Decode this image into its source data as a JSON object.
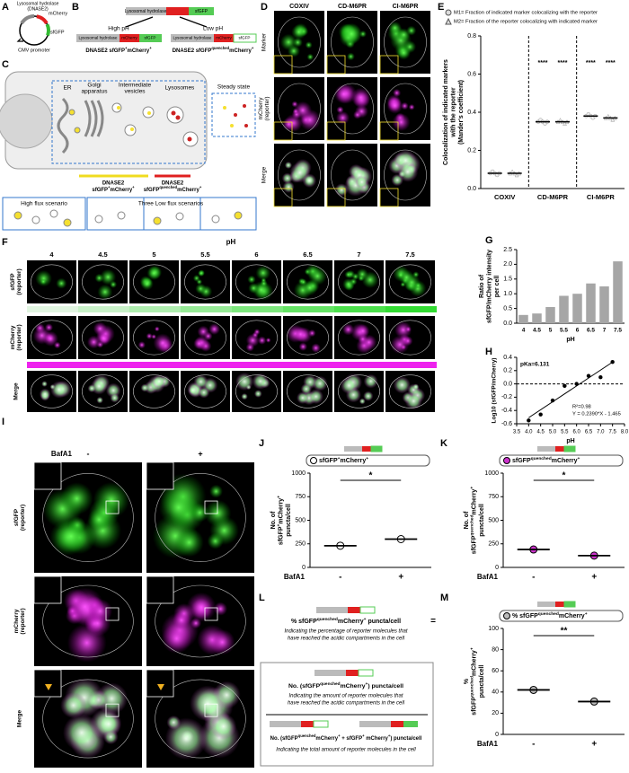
{
  "panel_labels": [
    "A",
    "B",
    "C",
    "D",
    "E",
    "F",
    "G",
    "H",
    "I",
    "J",
    "K",
    "L",
    "M"
  ],
  "a": {
    "hydrolase": "Lysosomal hydrolase",
    "hydrolase_gene": "(DNASE2)",
    "mcherry": "mCherry",
    "sfgfp": "sfGFP",
    "promoter": "CMV promoter"
  },
  "b": {
    "hydrolase": "Lysosomal hydrolase",
    "mcherry": "mCherry",
    "sfgfp": "sfGFP",
    "high_ph": "High pH",
    "low_ph": "Low pH",
    "high_label": [
      "DNASE2 sfGFP",
      "+",
      "mCherry",
      "+"
    ],
    "low_label": [
      "DNASE2 sfGFP",
      "quenched",
      "mCherry",
      "+"
    ]
  },
  "c": {
    "er": "ER",
    "golgi": [
      "Golgi",
      "apparatus"
    ],
    "vesicles": [
      "Intermediate",
      "vesicles"
    ],
    "lysosomes": "Lysosomes",
    "steady": "Steady state",
    "gene": "DNASE2",
    "yellow_label": [
      "sfGFP",
      "+",
      "mCherry",
      "+"
    ],
    "red_label": [
      "sfGFP",
      "quenched",
      "mCherry",
      "+"
    ],
    "high_flux": "High flux scenario",
    "low_flux": "Three Low flux scenarios"
  },
  "d": {
    "columns": [
      "COXIV",
      "CD-M6PR",
      "CI-M6PR"
    ],
    "rows": [
      [
        "Marker"
      ],
      [
        "mCherry",
        "(reporter)"
      ],
      [
        "Merge"
      ]
    ]
  },
  "f": {
    "title": "pH",
    "ph": [
      "4",
      "4.5",
      "5",
      "5.5",
      "6",
      "6.5",
      "7",
      "7.5"
    ],
    "rows": [
      [
        "sfGFP",
        "(reporter)"
      ],
      [
        "mCherry",
        "(reporter)"
      ],
      [
        "Merge"
      ]
    ]
  },
  "i": {
    "treatment": "BafA1",
    "conditions": [
      "-",
      "+"
    ],
    "rows": [
      [
        "sfGFP",
        "(reporter)"
      ],
      [
        "mCherry",
        "(reporter)"
      ],
      [
        "Merge"
      ]
    ]
  },
  "l": {
    "title": [
      "% sfGFP",
      "quenched",
      "mCherry",
      "+",
      " puncta/cell"
    ],
    "title_note": [
      "Indicating the percentage of reporter molecules that",
      "have reached the acidic compartments in the cell"
    ],
    "equals": "=",
    "numerator": [
      "No. (sfGFP",
      "quenched",
      "mCherry",
      "+",
      ") puncta/cell"
    ],
    "numerator_note": [
      "Indicating the amount of reporter molecules that",
      "have reached the acidic compartments in the cell"
    ],
    "denominator": [
      "No. (sfGFP",
      "quenched",
      "mCherry",
      "+",
      " + sfGFP",
      "+",
      " mCherry",
      "+",
      ") puncta/cell"
    ],
    "denominator_note": "Indicating the total amount of reporter molecules in the cell"
  },
  "chart_data": [
    {
      "type": "dot",
      "categories": [
        "COXIV",
        "CD-M6PR",
        "CI-M6PR"
      ],
      "ylabel": [
        "Colocalization of indicated markers",
        "with the reporter",
        "(Mander's coefficient)"
      ],
      "ylim": [
        0,
        0.8
      ],
      "yticks": [
        {
          "value": 0,
          "label": "0.0"
        },
        0.2,
        0.4,
        0.6,
        0.8
      ],
      "series": [
        {
          "name": "M1= Fraction of indicated marker colocalizing with the reporter",
          "marker": "circle",
          "color": "#dddddd",
          "values": [
            0.08,
            0.35,
            0.38
          ],
          "significance": [
            null,
            "****",
            "****"
          ]
        },
        {
          "name": "M2= Fraction of the reporter colocalizing with indicated marker",
          "marker": "triangle",
          "color": "#dddddd",
          "values": [
            0.08,
            0.35,
            0.37
          ],
          "significance": [
            null,
            "****",
            "****"
          ]
        }
      ]
    },
    {
      "type": "bar",
      "categories": [
        "4",
        "4.5",
        "5",
        "5.5",
        "6",
        "6.5",
        "7",
        "7.5"
      ],
      "values": [
        0.28,
        0.33,
        0.55,
        0.93,
        1.0,
        1.35,
        1.25,
        2.1
      ],
      "color": "#a6a6a6",
      "xlabel": "pH",
      "ylabel": [
        "Ratio of",
        "sfGFP/mCherry intensity",
        "per cell"
      ],
      "ylim": [
        0,
        2.5
      ],
      "yticks": [
        {
          "value": 0,
          "label": "0.0"
        },
        0.5,
        {
          "value": 1,
          "label": "1.0"
        },
        1.5,
        {
          "value": 2,
          "label": "2.0"
        },
        2.5
      ]
    },
    {
      "type": "scatter",
      "x": [
        4,
        4.5,
        5,
        5.5,
        6,
        6.5,
        7,
        7.5
      ],
      "values": [
        -0.55,
        -0.46,
        -0.25,
        -0.03,
        0.0,
        0.12,
        0.1,
        0.33
      ],
      "color": "#000000",
      "xlabel": "pH",
      "ylabel": "Log10 (sfGFP/mCherry)",
      "xlim": [
        3.5,
        8
      ],
      "xticks": [
        3.5,
        {
          "value": 4,
          "label": "4.0"
        },
        4.5,
        {
          "value": 5,
          "label": "5.0"
        },
        5.5,
        {
          "value": 6,
          "label": "6.0"
        },
        6.5,
        {
          "value": 7,
          "label": "7.0"
        },
        7.5,
        {
          "value": 8,
          "label": "8.0"
        }
      ],
      "ylim": [
        -0.6,
        0.4
      ],
      "yticks": [
        -0.6,
        -0.4,
        -0.2,
        {
          "value": 0,
          "label": "0.0"
        },
        0.2,
        0.4
      ],
      "pka": "pKa=6.131",
      "r2": "R²=0.98",
      "equation": "Y = 0.2390*X - 1.465",
      "fit": {
        "slope": 0.239,
        "intercept": -1.465
      }
    },
    {
      "type": "dot",
      "categories": [
        "-",
        "+"
      ],
      "xlabel": "BafA1",
      "values": [
        230,
        300
      ],
      "color": "#ffffff",
      "legend": [
        "sfGFP",
        "+",
        "mCherry",
        "+"
      ],
      "ylabel": [
        [
          "No. of"
        ],
        [
          "sfGFP",
          "+",
          "mCherry",
          "+"
        ],
        [
          "puncta/cell"
        ]
      ],
      "ylim": [
        0,
        1000
      ],
      "yticks": [
        0,
        250,
        500,
        750,
        1000
      ],
      "significance": "*"
    },
    {
      "type": "dot",
      "categories": [
        "-",
        "+"
      ],
      "xlabel": "BafA1",
      "values": [
        190,
        125
      ],
      "color": "#cc33cc",
      "legend": [
        "sfGFP",
        "quenched",
        "mCherry",
        "+"
      ],
      "ylabel": [
        [
          "No. of"
        ],
        [
          "sfGFP",
          "quenched",
          "mCherry",
          "+"
        ],
        [
          "puncta/cell"
        ]
      ],
      "ylim": [
        0,
        1000
      ],
      "yticks": [
        0,
        250,
        500,
        750,
        1000
      ],
      "significance": "*"
    },
    {
      "type": "dot",
      "categories": [
        "-",
        "+"
      ],
      "xlabel": "BafA1",
      "values": [
        42,
        31
      ],
      "color": "#bbbbbb",
      "legend": [
        "% sfGFP",
        "quenched",
        "mCherry",
        "+"
      ],
      "ylabel": [
        [
          "%"
        ],
        [
          "sfGFP",
          "quenched",
          "mCherry",
          "+"
        ],
        [
          "puncta/cell"
        ]
      ],
      "ylim": [
        0,
        100
      ],
      "yticks": [
        0,
        20,
        40,
        60,
        80,
        100
      ],
      "significance": "**"
    }
  ]
}
